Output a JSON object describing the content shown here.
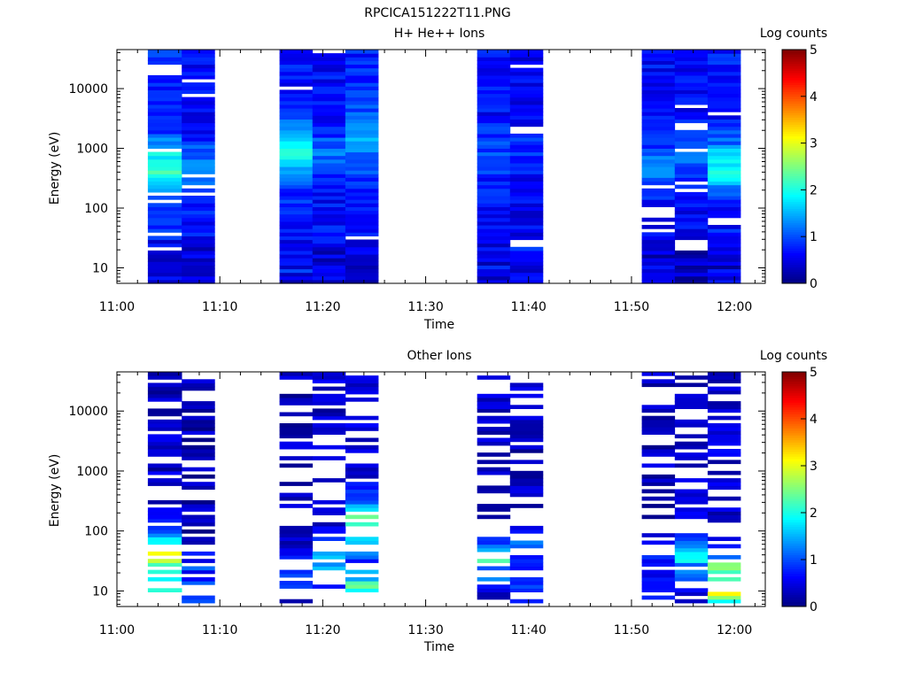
{
  "figure": {
    "title": "RPCICA151222T11.PNG"
  },
  "palette": {
    "colormap": [
      "#00007f",
      "#0000ff",
      "#007fff",
      "#00ffff",
      "#7fff7f",
      "#ffff00",
      "#ff7f00",
      "#ff0000",
      "#7f0000"
    ],
    "background": "#ffffff",
    "axis": "#000000"
  },
  "chart_data": [
    {
      "type": "heatmap",
      "title": "H+ He++ Ions",
      "xlabel": "Time",
      "ylabel": "Energy (eV)",
      "x_ticks": [
        "11:00",
        "11:10",
        "11:20",
        "11:30",
        "11:40",
        "11:50",
        "12:00"
      ],
      "x_tick_minutes": [
        0,
        10,
        20,
        30,
        40,
        50,
        60
      ],
      "xlim_minutes": [
        0,
        63
      ],
      "y_scale": "log",
      "y_ticks": [
        "10",
        "100",
        "1000",
        "10000"
      ],
      "y_tick_values": [
        10,
        100,
        1000,
        10000
      ],
      "ylim": [
        5.5,
        45000
      ],
      "colorbar": {
        "label": "Log counts",
        "ticks": [
          "0",
          "1",
          "2",
          "3",
          "4",
          "5"
        ],
        "range": [
          0,
          5
        ]
      },
      "bands": [
        {
          "start_min": 3.0,
          "end_min": 6.3,
          "seed": 11,
          "base": 0.8,
          "peak_energy": 450,
          "peak_value": 2.2,
          "low_energy_value": 0.45,
          "gap_rate": 0.07
        },
        {
          "start_min": 6.3,
          "end_min": 9.5,
          "seed": 23,
          "base": 0.65,
          "peak_energy": 400,
          "peak_value": 1.4,
          "low_energy_value": 0.3,
          "gap_rate": 0.06
        },
        {
          "start_min": 15.8,
          "end_min": 19.0,
          "seed": 31,
          "base": 0.75,
          "peak_energy": 1000,
          "peak_value": 1.9,
          "low_energy_value": 0.6,
          "gap_rate": 0.06
        },
        {
          "start_min": 19.0,
          "end_min": 22.2,
          "seed": 47,
          "base": 0.65,
          "peak_energy": 800,
          "peak_value": 1.1,
          "low_energy_value": 0.5,
          "gap_rate": 0.07
        },
        {
          "start_min": 22.2,
          "end_min": 25.4,
          "seed": 53,
          "base": 0.8,
          "peak_energy": 1600,
          "peak_value": 1.5,
          "low_energy_value": 0.4,
          "gap_rate": 0.06
        },
        {
          "start_min": 35.0,
          "end_min": 38.2,
          "seed": 61,
          "base": 0.65,
          "peak_energy": 800,
          "peak_value": 1.0,
          "low_energy_value": 0.5,
          "gap_rate": 0.07
        },
        {
          "start_min": 38.2,
          "end_min": 41.4,
          "seed": 71,
          "base": 0.55,
          "peak_energy": 800,
          "peak_value": 0.9,
          "low_energy_value": 0.55,
          "gap_rate": 0.07
        },
        {
          "start_min": 51.0,
          "end_min": 54.2,
          "seed": 83,
          "base": 0.65,
          "peak_energy": 500,
          "peak_value": 1.2,
          "low_energy_value": 0.35,
          "gap_rate": 0.08
        },
        {
          "start_min": 54.2,
          "end_min": 57.4,
          "seed": 97,
          "base": 0.6,
          "peak_energy": 600,
          "peak_value": 1.1,
          "low_energy_value": 0.35,
          "gap_rate": 0.08
        },
        {
          "start_min": 57.4,
          "end_min": 60.6,
          "seed": 101,
          "base": 0.7,
          "peak_energy": 500,
          "peak_value": 1.9,
          "low_energy_value": 0.5,
          "gap_rate": 0.08
        }
      ]
    },
    {
      "type": "heatmap",
      "title": "Other Ions",
      "xlabel": "Time",
      "ylabel": "Energy (eV)",
      "x_ticks": [
        "11:00",
        "11:10",
        "11:20",
        "11:30",
        "11:40",
        "11:50",
        "12:00"
      ],
      "x_tick_minutes": [
        0,
        10,
        20,
        30,
        40,
        50,
        60
      ],
      "xlim_minutes": [
        0,
        63
      ],
      "y_scale": "log",
      "y_ticks": [
        "10",
        "100",
        "1000",
        "10000"
      ],
      "y_tick_values": [
        10,
        100,
        1000,
        10000
      ],
      "ylim": [
        5.5,
        45000
      ],
      "colorbar": {
        "label": "Log counts",
        "ticks": [
          "0",
          "1",
          "2",
          "3",
          "4",
          "5"
        ],
        "range": [
          0,
          5
        ]
      },
      "bands": [
        {
          "start_min": 3.0,
          "end_min": 6.3,
          "seed": 13,
          "base": 0.35,
          "peak_energy": 35,
          "peak_value": 3.0,
          "low_energy_value": 2.0,
          "gap_rate": 0.35,
          "min_energy": 9
        },
        {
          "start_min": 6.3,
          "end_min": 9.5,
          "seed": 29,
          "base": 0.25,
          "peak_energy": 15,
          "peak_value": 1.1,
          "low_energy_value": 0.8,
          "gap_rate": 0.4,
          "min_energy": 5.5
        },
        {
          "start_min": 15.8,
          "end_min": 19.0,
          "seed": 37,
          "base": 0.3,
          "peak_energy": 15,
          "peak_value": 1.6,
          "low_energy_value": 0.4,
          "gap_rate": 0.45,
          "min_energy": 5.5
        },
        {
          "start_min": 19.0,
          "end_min": 22.2,
          "seed": 43,
          "base": 0.35,
          "peak_energy": 25,
          "peak_value": 2.0,
          "low_energy_value": 0.2,
          "gap_rate": 0.45,
          "min_energy": 5.5
        },
        {
          "start_min": 22.2,
          "end_min": 25.4,
          "seed": 59,
          "base": 0.45,
          "peak_energy": 120,
          "peak_value": 2.4,
          "low_energy_value": 2.0,
          "gap_rate": 0.4,
          "min_energy": 9
        },
        {
          "start_min": 35.0,
          "end_min": 38.2,
          "seed": 67,
          "base": 0.35,
          "peak_energy": 25,
          "peak_value": 2.2,
          "low_energy_value": 0.6,
          "gap_rate": 0.5,
          "min_energy": 5.5
        },
        {
          "start_min": 38.2,
          "end_min": 41.4,
          "seed": 73,
          "base": 0.3,
          "peak_energy": 60,
          "peak_value": 1.0,
          "low_energy_value": 0.7,
          "gap_rate": 0.45,
          "min_energy": 5.5
        },
        {
          "start_min": 51.0,
          "end_min": 54.2,
          "seed": 89,
          "base": 0.3,
          "peak_energy": 15,
          "peak_value": 1.2,
          "low_energy_value": 0.5,
          "gap_rate": 0.5,
          "min_energy": 5.5
        },
        {
          "start_min": 54.2,
          "end_min": 57.4,
          "seed": 103,
          "base": 0.35,
          "peak_energy": 25,
          "peak_value": 2.0,
          "low_energy_value": 0.2,
          "gap_rate": 0.45,
          "min_energy": 5.5
        },
        {
          "start_min": 57.4,
          "end_min": 60.6,
          "seed": 107,
          "base": 0.4,
          "peak_energy": 15,
          "peak_value": 2.6,
          "low_energy_value": 2.4,
          "gap_rate": 0.45,
          "min_energy": 5.5
        }
      ]
    }
  ]
}
